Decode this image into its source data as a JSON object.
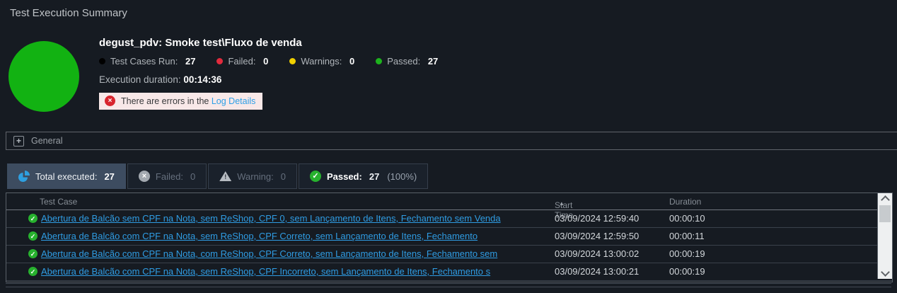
{
  "page": {
    "title": "Test Execution Summary"
  },
  "summary": {
    "test_name": "degust_pdv: Smoke test\\Fluxo de venda",
    "stats": [
      {
        "label": "Test Cases Run:",
        "value": "27",
        "dot_color": "#000000"
      },
      {
        "label": "Failed:",
        "value": "0",
        "dot_color": "#e22b3d"
      },
      {
        "label": "Warnings:",
        "value": "0",
        "dot_color": "#f0d000"
      },
      {
        "label": "Passed:",
        "value": "27",
        "dot_color": "#1db31d"
      }
    ],
    "duration_label": "Execution duration:",
    "duration_value": "00:14:36",
    "error_banner": {
      "text": "There are errors in the",
      "link": "Log Details"
    },
    "pie": {
      "passed_pct": 100,
      "color": "#12b212"
    }
  },
  "general_section": {
    "label": "General"
  },
  "tabs": [
    {
      "label": "Total executed:",
      "value": "27",
      "suffix": "",
      "active": true
    },
    {
      "label": "Failed:",
      "value": "0",
      "suffix": "",
      "active": false
    },
    {
      "label": "Warning:",
      "value": "0",
      "suffix": "",
      "active": false
    },
    {
      "label": "Passed:",
      "value": "27",
      "suffix": "(100%)",
      "active": false
    }
  ],
  "table": {
    "columns": [
      "Test Case",
      "Start Time",
      "Duration"
    ],
    "sort_indicator": "▲",
    "rows": [
      {
        "test_case": "Abertura de Balcão sem CPF na Nota, sem ReShop, CPF 0, sem Lançamento de Itens, Fechamento sem Venda",
        "start_time": "03/09/2024 12:59:40",
        "duration": "00:00:10"
      },
      {
        "test_case": "Abertura de Balcão com CPF na Nota, sem ReShop, CPF Correto, sem Lançamento de Itens, Fechamento",
        "start_time": "03/09/2024 12:59:50",
        "duration": "00:00:11"
      },
      {
        "test_case": "Abertura de Balcão com CPF na Nota, com ReShop, CPF Correto, sem Lançamento de Itens, Fechamento sem",
        "start_time": "03/09/2024 13:00:02",
        "duration": "00:00:19"
      },
      {
        "test_case": "Abertura de Balcão com CPF na Nota, sem ReShop, CPF Incorreto, sem Lançamento de Itens, Fechamento s",
        "start_time": "03/09/2024 13:00:21",
        "duration": "00:00:19"
      }
    ]
  }
}
